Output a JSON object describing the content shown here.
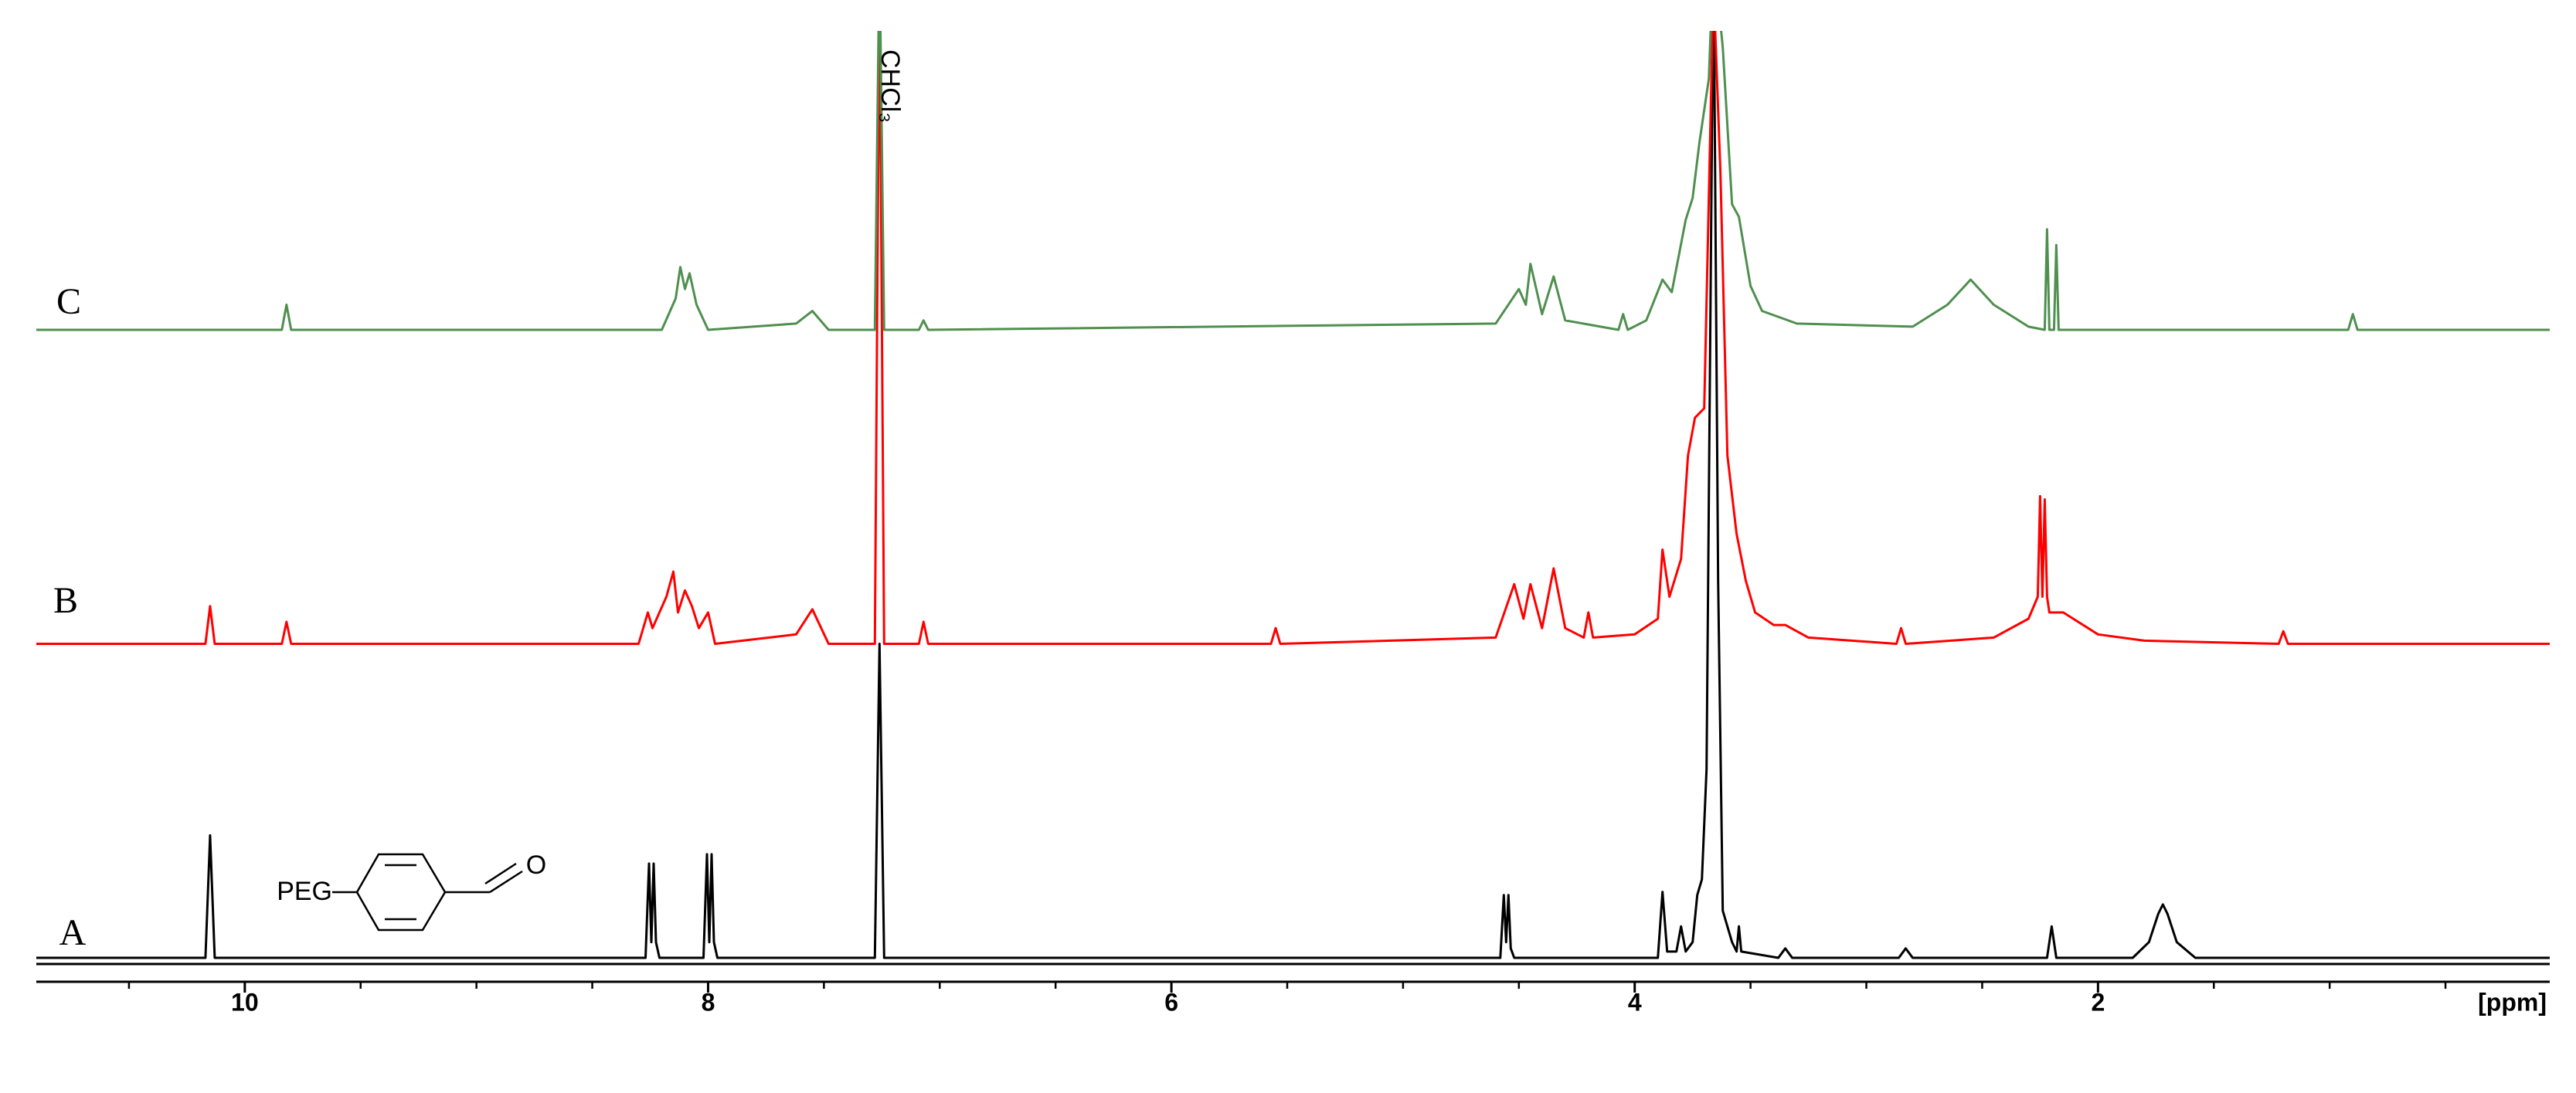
{
  "chart_data": {
    "type": "line",
    "x_label": "[ppm]",
    "xlim": [
      10.9,
      0.05
    ],
    "xticks": [
      10,
      8,
      6,
      4,
      2
    ],
    "xminorticks": [
      10.5,
      9.5,
      9,
      8.5,
      7.5,
      7,
      6.5,
      5.5,
      5,
      4.5,
      3.5,
      3,
      2.5,
      1.5,
      1,
      0.5
    ],
    "annotations": [
      "CHCl₃",
      "PEG",
      "O"
    ],
    "series": [
      {
        "name": "A",
        "color": "#000000",
        "x": [
          10.9,
          10.17,
          10.15,
          10.13,
          8.27,
          8.255,
          8.245,
          8.235,
          8.225,
          8.21,
          8.02,
          8.005,
          7.995,
          7.985,
          7.975,
          7.96,
          7.28,
          7.26,
          7.24,
          4.58,
          4.565,
          4.555,
          4.545,
          4.535,
          4.52,
          3.9,
          3.88,
          3.86,
          3.82,
          3.8,
          3.78,
          3.75,
          3.73,
          3.71,
          3.69,
          3.66,
          3.64,
          3.62,
          3.58,
          3.56,
          3.55,
          3.54,
          3.38,
          3.35,
          3.32,
          2.86,
          2.83,
          2.8,
          2.22,
          2.2,
          2.18,
          1.85,
          1.78,
          1.74,
          1.72,
          1.7,
          1.66,
          1.58,
          0.05
        ],
        "values": [
          0,
          0,
          0.39,
          0,
          0,
          0.3,
          0.05,
          0.3,
          0.05,
          0,
          0,
          0.33,
          0.05,
          0.33,
          0.05,
          0,
          0,
          1.0,
          0,
          0,
          0.2,
          0.05,
          0.2,
          0.03,
          0,
          0,
          0.21,
          0.02,
          0.02,
          0.1,
          0.02,
          0.05,
          0.2,
          0.25,
          0.6,
          3.2,
          1.2,
          0.15,
          0.05,
          0.02,
          0.1,
          0.02,
          0,
          0.03,
          0,
          0,
          0.03,
          0,
          0,
          0.1,
          0,
          0,
          0.05,
          0.14,
          0.17,
          0.14,
          0.05,
          0,
          0
        ]
      },
      {
        "name": "B",
        "color": "#ff0000",
        "x": [
          10.9,
          10.17,
          10.15,
          10.13,
          9.84,
          9.82,
          9.8,
          8.3,
          8.26,
          8.24,
          8.18,
          8.15,
          8.13,
          8.1,
          8.07,
          8.04,
          8.0,
          7.97,
          7.62,
          7.55,
          7.48,
          7.28,
          7.26,
          7.24,
          7.09,
          7.07,
          7.05,
          5.57,
          5.55,
          5.53,
          4.6,
          4.52,
          4.48,
          4.45,
          4.4,
          4.35,
          4.3,
          4.22,
          4.2,
          4.18,
          4.0,
          3.9,
          3.88,
          3.85,
          3.8,
          3.77,
          3.74,
          3.7,
          3.66,
          3.63,
          3.6,
          3.56,
          3.52,
          3.48,
          3.4,
          3.35,
          3.25,
          2.87,
          2.85,
          2.83,
          2.45,
          2.3,
          2.26,
          2.25,
          2.24,
          2.23,
          2.22,
          2.21,
          2.15,
          2.0,
          1.8,
          1.22,
          1.2,
          1.18,
          0.05
        ],
        "values": [
          0,
          0,
          0.12,
          0,
          0,
          0.07,
          0,
          0,
          0.1,
          0.05,
          0.15,
          0.23,
          0.1,
          0.17,
          0.12,
          0.05,
          0.1,
          0,
          0.03,
          0.11,
          0,
          0,
          2.1,
          0,
          0,
          0.07,
          0,
          0,
          0.05,
          0,
          0.02,
          0.19,
          0.08,
          0.19,
          0.05,
          0.24,
          0.05,
          0.02,
          0.1,
          0.02,
          0.03,
          0.08,
          0.3,
          0.15,
          0.27,
          0.6,
          0.72,
          0.75,
          2.1,
          1.5,
          0.6,
          0.35,
          0.2,
          0.1,
          0.06,
          0.06,
          0.02,
          0,
          0.05,
          0,
          0.02,
          0.08,
          0.15,
          0.47,
          0.15,
          0.46,
          0.15,
          0.1,
          0.1,
          0.03,
          0.01,
          0,
          0.04,
          0,
          0
        ]
      },
      {
        "name": "C",
        "color": "#4f8f4f",
        "x": [
          10.9,
          9.84,
          9.82,
          9.8,
          8.2,
          8.14,
          8.12,
          8.1,
          8.08,
          8.05,
          8.0,
          7.62,
          7.55,
          7.48,
          7.28,
          7.26,
          7.24,
          7.09,
          7.07,
          7.05,
          4.6,
          4.5,
          4.47,
          4.45,
          4.4,
          4.35,
          4.3,
          4.07,
          4.05,
          4.03,
          3.95,
          3.88,
          3.84,
          3.78,
          3.75,
          3.72,
          3.68,
          3.66,
          3.62,
          3.58,
          3.55,
          3.5,
          3.45,
          3.3,
          2.8,
          2.65,
          2.55,
          2.45,
          2.3,
          2.23,
          2.22,
          2.21,
          2.19,
          2.18,
          2.17,
          2.1,
          0.92,
          0.9,
          0.88,
          0.05
        ],
        "values": [
          0,
          0,
          0.08,
          0,
          0,
          0.1,
          0.2,
          0.13,
          0.18,
          0.08,
          0,
          0.02,
          0.06,
          0,
          0,
          1.2,
          0,
          0,
          0.03,
          0,
          0.02,
          0.13,
          0.08,
          0.21,
          0.05,
          0.17,
          0.03,
          0,
          0.05,
          0,
          0.03,
          0.16,
          0.12,
          0.35,
          0.42,
          0.6,
          0.8,
          1.2,
          0.9,
          0.4,
          0.36,
          0.14,
          0.06,
          0.02,
          0.01,
          0.08,
          0.16,
          0.08,
          0.01,
          0,
          0.32,
          0,
          0,
          0.27,
          0,
          0,
          0,
          0.05,
          0,
          0
        ]
      }
    ]
  }
}
